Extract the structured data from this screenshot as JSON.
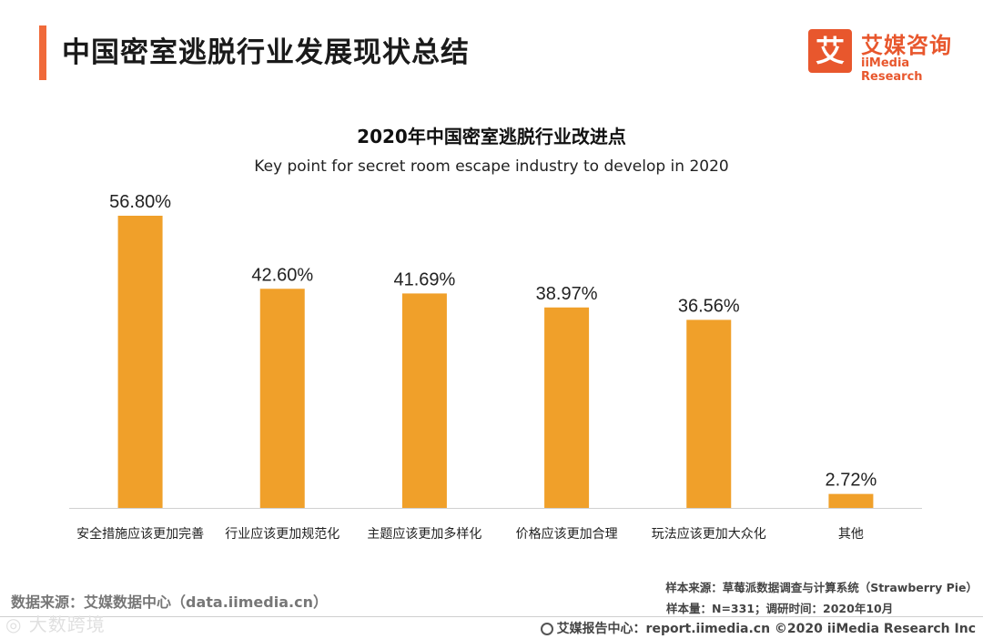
{
  "header": {
    "title": "中国密室逃脱行业发展现状总结",
    "accent_color": "#F06A3A"
  },
  "logo": {
    "mark": "艾",
    "name_cn": "艾媒咨询",
    "name_en": "iiMedia Research",
    "color": "#E8572D"
  },
  "chart_data": {
    "type": "bar",
    "title": "2020年中国密室逃脱行业改进点",
    "subtitle": "Key point for secret room escape industry to develop in 2020",
    "categories": [
      "安全措施应该更加完善",
      "行业应该更加规范化",
      "主题应该更加多样化",
      "价格应该更加合理",
      "玩法应该更加大众化",
      "其他"
    ],
    "values": [
      56.8,
      42.6,
      41.69,
      38.97,
      36.56,
      2.72
    ],
    "data_labels": [
      "56.80%",
      "42.60%",
      "41.69%",
      "38.97%",
      "36.56%",
      "2.72%"
    ],
    "unit": "%",
    "ylim": [
      0,
      60
    ],
    "grid": false,
    "bar_color": "#F0A02A",
    "xlabel": "",
    "ylabel": ""
  },
  "footer": {
    "data_source": "数据来源：艾媒数据中心（data.iimedia.cn）",
    "sample_source": "样本来源：草莓派数据调查与计算系统（Strawberry Pie）",
    "sample_size": "样本量：N=331；调研时间：2020年10月",
    "report_center": "艾媒报告中心：report.iimedia.cn  ©2020  iiMedia Research  Inc",
    "watermark": "◎ 大数跨境"
  }
}
